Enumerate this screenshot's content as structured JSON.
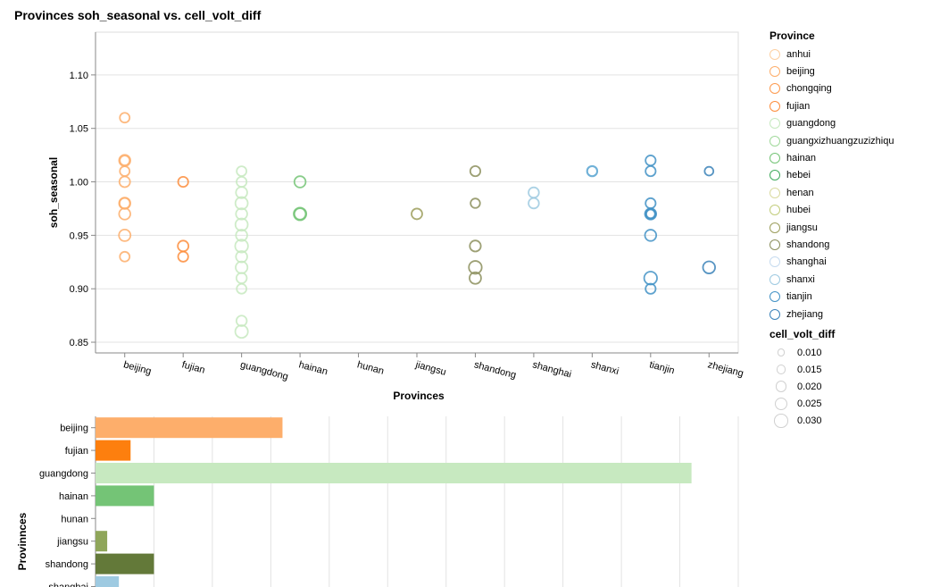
{
  "title": "Provinces soh_seasonal vs. cell_volt_diff",
  "chart_data": [
    {
      "type": "scatter",
      "title": "Provinces soh_seasonal vs. cell_volt_diff",
      "xlabel": "Provinces",
      "ylabel": "soh_seasonal",
      "x_categories": [
        "beijing",
        "fujian",
        "guangdong",
        "hainan",
        "hunan",
        "jiangsu",
        "shandong",
        "shanghai",
        "shanxi",
        "tianjin",
        "zhejiang"
      ],
      "ylim": [
        0.84,
        1.14
      ],
      "yticks": [
        "0.85",
        "0.90",
        "0.95",
        "1.00",
        "1.05",
        "1.10"
      ],
      "grid": true,
      "points": [
        {
          "x": "beijing",
          "y": 1.06,
          "size": 0.015,
          "color": "#fdae6b"
        },
        {
          "x": "beijing",
          "y": 1.02,
          "size": 0.02,
          "color": "#fdae6b"
        },
        {
          "x": "beijing",
          "y": 1.02,
          "size": 0.015,
          "color": "#fdae6b"
        },
        {
          "x": "beijing",
          "y": 1.01,
          "size": 0.015,
          "color": "#fdae6b"
        },
        {
          "x": "beijing",
          "y": 1.0,
          "size": 0.018,
          "color": "#fdae6b"
        },
        {
          "x": "beijing",
          "y": 0.98,
          "size": 0.02,
          "color": "#fdae6b"
        },
        {
          "x": "beijing",
          "y": 0.98,
          "size": 0.017,
          "color": "#fdae6b"
        },
        {
          "x": "beijing",
          "y": 0.97,
          "size": 0.02,
          "color": "#fdae6b"
        },
        {
          "x": "beijing",
          "y": 0.95,
          "size": 0.021,
          "color": "#fdae6b"
        },
        {
          "x": "beijing",
          "y": 0.93,
          "size": 0.015,
          "color": "#fdae6b"
        },
        {
          "x": "fujian",
          "y": 1.0,
          "size": 0.016,
          "color": "#fd8d3c"
        },
        {
          "x": "fujian",
          "y": 0.94,
          "size": 0.018,
          "color": "#fd8d3c"
        },
        {
          "x": "fujian",
          "y": 0.93,
          "size": 0.016,
          "color": "#fd8d3c"
        },
        {
          "x": "guangdong",
          "y": 1.01,
          "size": 0.015,
          "color": "#c7e9c0"
        },
        {
          "x": "guangdong",
          "y": 1.0,
          "size": 0.016,
          "color": "#c7e9c0"
        },
        {
          "x": "guangdong",
          "y": 0.99,
          "size": 0.02,
          "color": "#c7e9c0"
        },
        {
          "x": "guangdong",
          "y": 0.98,
          "size": 0.024,
          "color": "#c7e9c0"
        },
        {
          "x": "guangdong",
          "y": 0.97,
          "size": 0.02,
          "color": "#c7e9c0"
        },
        {
          "x": "guangdong",
          "y": 0.96,
          "size": 0.024,
          "color": "#c7e9c0"
        },
        {
          "x": "guangdong",
          "y": 0.95,
          "size": 0.02,
          "color": "#c7e9c0"
        },
        {
          "x": "guangdong",
          "y": 0.94,
          "size": 0.026,
          "color": "#c7e9c0"
        },
        {
          "x": "guangdong",
          "y": 0.93,
          "size": 0.02,
          "color": "#c7e9c0"
        },
        {
          "x": "guangdong",
          "y": 0.92,
          "size": 0.022,
          "color": "#c7e9c0"
        },
        {
          "x": "guangdong",
          "y": 0.91,
          "size": 0.017,
          "color": "#c7e9c0"
        },
        {
          "x": "guangdong",
          "y": 0.9,
          "size": 0.015,
          "color": "#c7e9c0"
        },
        {
          "x": "guangdong",
          "y": 0.87,
          "size": 0.017,
          "color": "#c7e9c0"
        },
        {
          "x": "guangdong",
          "y": 0.86,
          "size": 0.025,
          "color": "#c7e9c0"
        },
        {
          "x": "hainan",
          "y": 1.0,
          "size": 0.02,
          "color": "#74c476"
        },
        {
          "x": "hainan",
          "y": 0.97,
          "size": 0.025,
          "color": "#74c476"
        },
        {
          "x": "hainan",
          "y": 0.97,
          "size": 0.02,
          "color": "#74c476"
        },
        {
          "x": "jiangsu",
          "y": 0.97,
          "size": 0.018,
          "color": "#9c9e5c"
        },
        {
          "x": "shandong",
          "y": 1.01,
          "size": 0.016,
          "color": "#8c8f5d"
        },
        {
          "x": "shandong",
          "y": 0.98,
          "size": 0.014,
          "color": "#8c8f5d"
        },
        {
          "x": "shandong",
          "y": 0.94,
          "size": 0.019,
          "color": "#8c8f5d"
        },
        {
          "x": "shandong",
          "y": 0.92,
          "size": 0.026,
          "color": "#8c8f5d"
        },
        {
          "x": "shandong",
          "y": 0.91,
          "size": 0.021,
          "color": "#8c8f5d"
        },
        {
          "x": "shanghai",
          "y": 0.99,
          "size": 0.017,
          "color": "#9ecae1"
        },
        {
          "x": "shanghai",
          "y": 0.98,
          "size": 0.017,
          "color": "#9ecae1"
        },
        {
          "x": "shanxi",
          "y": 1.01,
          "size": 0.017,
          "color": "#6baed6"
        },
        {
          "x": "shanxi",
          "y": 1.01,
          "size": 0.015,
          "color": "#6baed6"
        },
        {
          "x": "tianjin",
          "y": 1.02,
          "size": 0.016,
          "color": "#4292c6"
        },
        {
          "x": "tianjin",
          "y": 1.01,
          "size": 0.016,
          "color": "#4292c6"
        },
        {
          "x": "tianjin",
          "y": 0.98,
          "size": 0.016,
          "color": "#4292c6"
        },
        {
          "x": "tianjin",
          "y": 0.97,
          "size": 0.02,
          "color": "#4292c6"
        },
        {
          "x": "tianjin",
          "y": 0.97,
          "size": 0.015,
          "color": "#4292c6"
        },
        {
          "x": "tianjin",
          "y": 0.97,
          "size": 0.012,
          "color": "#4292c6"
        },
        {
          "x": "tianjin",
          "y": 0.95,
          "size": 0.02,
          "color": "#4292c6"
        },
        {
          "x": "tianjin",
          "y": 0.91,
          "size": 0.026,
          "color": "#4292c6"
        },
        {
          "x": "tianjin",
          "y": 0.9,
          "size": 0.016,
          "color": "#4292c6"
        },
        {
          "x": "zhejiang",
          "y": 1.01,
          "size": 0.012,
          "color": "#3b82b9"
        },
        {
          "x": "zhejiang",
          "y": 0.92,
          "size": 0.023,
          "color": "#3b82b9"
        }
      ]
    },
    {
      "type": "bar",
      "orientation": "horizontal",
      "ylabel": "Provinnces",
      "categories": [
        "beijing",
        "fujian",
        "guangdong",
        "hainan",
        "hunan",
        "jiangsu",
        "shandong",
        "shanghai"
      ],
      "values": [
        16,
        3,
        51,
        5,
        0,
        1,
        5,
        2
      ],
      "xlim": [
        0,
        55
      ],
      "grid": true,
      "colors": [
        "#fdae6b",
        "#fd7f0e",
        "#c7e9c0",
        "#74c476",
        "#cccccc",
        "#8fa65a",
        "#637939",
        "#9ecae1"
      ]
    }
  ],
  "legend": {
    "color_title": "Province",
    "color_items": [
      {
        "label": "anhui",
        "color": "#fdd0a2"
      },
      {
        "label": "beijing",
        "color": "#fdae6b"
      },
      {
        "label": "chongqing",
        "color": "#fd9a4f"
      },
      {
        "label": "fujian",
        "color": "#fd8d3c"
      },
      {
        "label": "guangdong",
        "color": "#c7e9c0"
      },
      {
        "label": "guangxizhuangzuzizhiqu",
        "color": "#a1d99b"
      },
      {
        "label": "hainan",
        "color": "#74c476"
      },
      {
        "label": "hebei",
        "color": "#41ab5d"
      },
      {
        "label": "henan",
        "color": "#dadaa0"
      },
      {
        "label": "hubei",
        "color": "#c2cd7c"
      },
      {
        "label": "jiangsu",
        "color": "#9c9e5c"
      },
      {
        "label": "shandong",
        "color": "#8c8f5d"
      },
      {
        "label": "shanghai",
        "color": "#c6dbef"
      },
      {
        "label": "shanxi",
        "color": "#9ecae1"
      },
      {
        "label": "tianjin",
        "color": "#4292c6"
      },
      {
        "label": "zhejiang",
        "color": "#3b82b9"
      }
    ],
    "size_title": "cell_volt_diff",
    "size_items": [
      "0.010",
      "0.015",
      "0.020",
      "0.025",
      "0.030"
    ]
  }
}
